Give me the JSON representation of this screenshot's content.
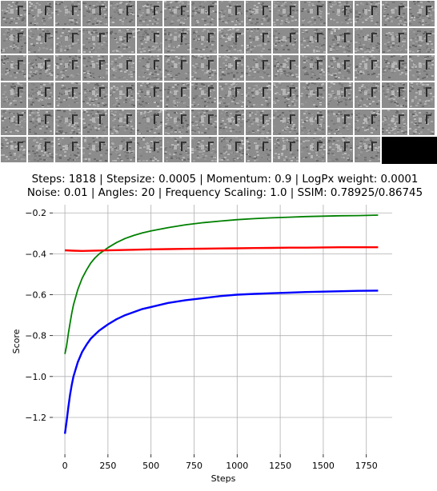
{
  "figure": {
    "title_line1": "Steps: 1818 | Stepsize: 0.0005 | Momentum: 0.9 | LogPx weight: 0.0001",
    "title_line2": "Noise: 0.01 | Angles: 20 | Frequency Scaling: 1.0 | SSIM: 0.78925/0.86745",
    "image_grid": {
      "columns": 16,
      "rows": 6,
      "filled_tiles": 94,
      "empty_tile_color": "#000000"
    }
  },
  "chart_data": {
    "type": "line",
    "title": "",
    "xlabel": "Steps",
    "ylabel": "Score",
    "xlim": [
      -70,
      1900
    ],
    "ylim": [
      -1.38,
      -0.16
    ],
    "xticks": [
      0,
      250,
      500,
      750,
      1000,
      1250,
      1500,
      1750
    ],
    "xtick_labels": [
      "0",
      "250",
      "500",
      "750",
      "1000",
      "1250",
      "1500",
      "1750"
    ],
    "yticks": [
      -1.2,
      -1.0,
      -0.8,
      -0.6,
      -0.4,
      -0.2
    ],
    "ytick_labels": [
      "−1.2",
      "−1.0",
      "−0.8",
      "−0.6",
      "−0.4",
      "−0.2"
    ],
    "grid": true,
    "series": [
      {
        "color": "#008000",
        "x": [
          0,
          10,
          20,
          30,
          40,
          50,
          75,
          100,
          125,
          150,
          175,
          200,
          250,
          300,
          350,
          400,
          450,
          500,
          600,
          700,
          800,
          900,
          1000,
          1100,
          1200,
          1300,
          1400,
          1500,
          1600,
          1700,
          1818
        ],
        "y": [
          -0.89,
          -0.85,
          -0.79,
          -0.74,
          -0.69,
          -0.65,
          -0.575,
          -0.52,
          -0.48,
          -0.445,
          -0.42,
          -0.4,
          -0.37,
          -0.345,
          -0.325,
          -0.31,
          -0.298,
          -0.288,
          -0.272,
          -0.258,
          -0.248,
          -0.24,
          -0.233,
          -0.228,
          -0.224,
          -0.221,
          -0.218,
          -0.216,
          -0.214,
          -0.213,
          -0.211
        ]
      },
      {
        "color": "#ff0000",
        "x": [
          0,
          50,
          100,
          200,
          300,
          400,
          500,
          600,
          700,
          800,
          900,
          1000,
          1100,
          1200,
          1300,
          1400,
          1500,
          1600,
          1700,
          1818
        ],
        "y": [
          -0.383,
          -0.385,
          -0.386,
          -0.384,
          -0.382,
          -0.38,
          -0.378,
          -0.377,
          -0.376,
          -0.375,
          -0.374,
          -0.373,
          -0.372,
          -0.371,
          -0.37,
          -0.37,
          -0.369,
          -0.368,
          -0.368,
          -0.368
        ]
      },
      {
        "color": "#0000ff",
        "x": [
          0,
          10,
          20,
          30,
          40,
          50,
          75,
          100,
          125,
          150,
          175,
          200,
          250,
          300,
          350,
          400,
          450,
          500,
          600,
          700,
          800,
          900,
          1000,
          1100,
          1200,
          1300,
          1400,
          1500,
          1600,
          1700,
          1818
        ],
        "y": [
          -1.28,
          -1.22,
          -1.15,
          -1.09,
          -1.04,
          -1.0,
          -0.93,
          -0.88,
          -0.845,
          -0.815,
          -0.795,
          -0.775,
          -0.745,
          -0.72,
          -0.7,
          -0.685,
          -0.67,
          -0.66,
          -0.64,
          -0.627,
          -0.617,
          -0.607,
          -0.6,
          -0.596,
          -0.593,
          -0.59,
          -0.587,
          -0.585,
          -0.583,
          -0.581,
          -0.58
        ]
      }
    ]
  }
}
